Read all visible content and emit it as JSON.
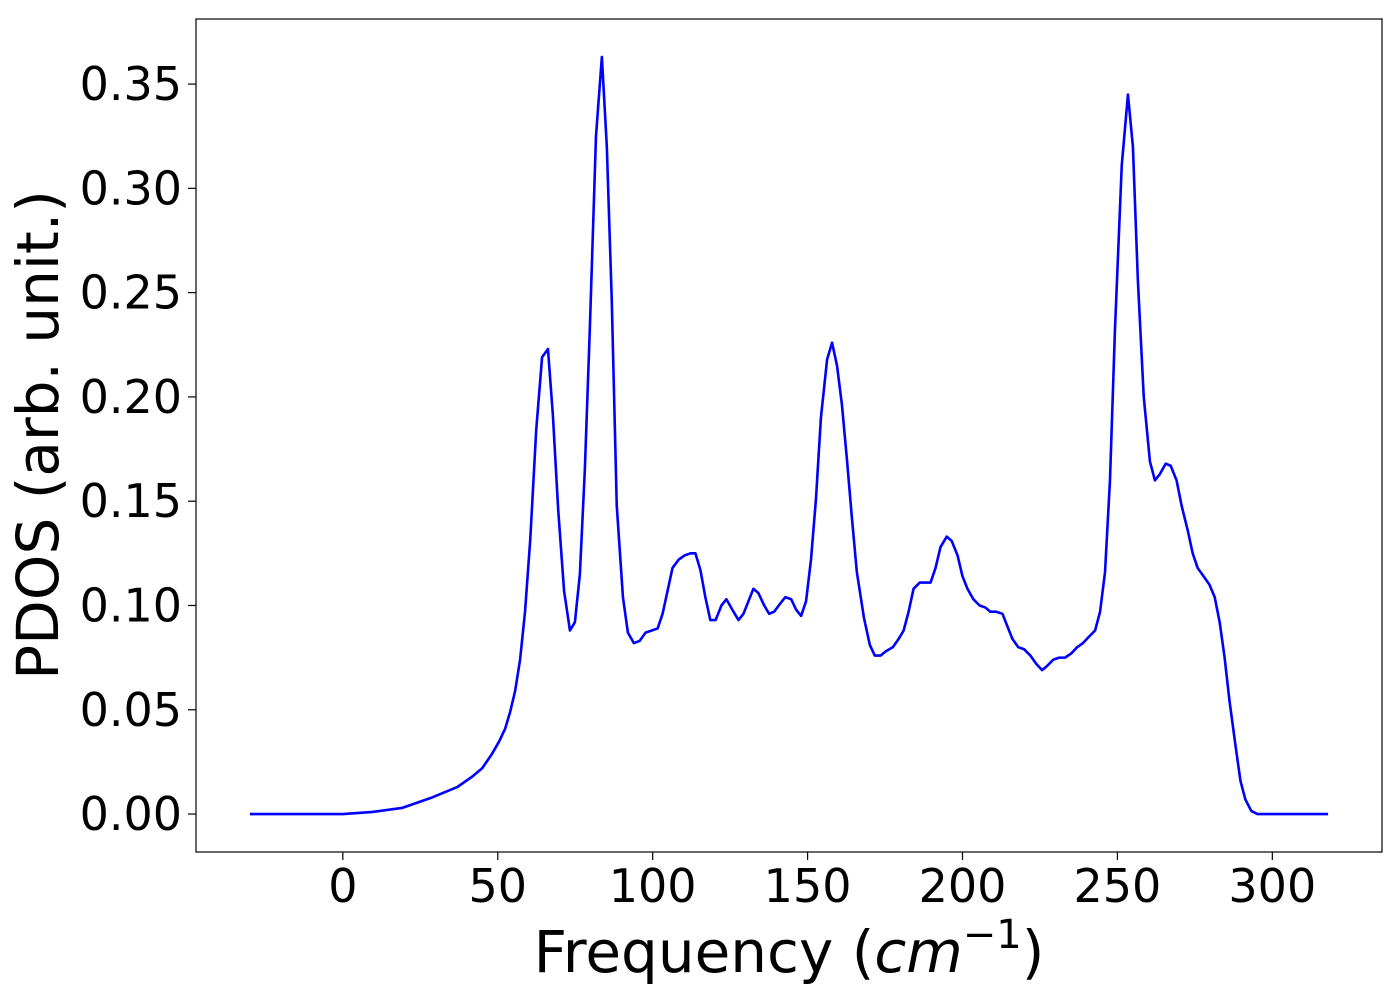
{
  "chart_data": {
    "type": "line",
    "x_label": [
      "Frequency (",
      "cm",
      "−1",
      ")"
    ],
    "y_label": "PDOS (arb. unit.)",
    "xlim": [
      -47.4,
      335.4
    ],
    "ylim": [
      -0.0182,
      0.3812
    ],
    "xticks": [
      0,
      50,
      100,
      150,
      200,
      250,
      300
    ],
    "yticks": [
      {
        "value": 0,
        "label": "0.00"
      },
      {
        "value": 0.05,
        "label": "0.05"
      },
      {
        "value": 0.1,
        "label": "0.10"
      },
      {
        "value": 0.15,
        "label": "0.15"
      },
      {
        "value": 0.2,
        "label": "0.20"
      },
      {
        "value": 0.25,
        "label": "0.25"
      },
      {
        "value": 0.3,
        "label": "0.30"
      },
      {
        "value": 0.35,
        "label": "0.35"
      }
    ],
    "series": [
      {
        "color": "#0000ff",
        "x": [
          -30,
          0,
          9.6,
          19.3,
          28.9,
          37,
          41.8,
          45,
          48.2,
          50.5,
          52.4,
          54,
          55.6,
          57.2,
          58.8,
          60.5,
          62.4,
          64.3,
          66.2,
          67.8,
          69.5,
          71.4,
          73.3,
          74.9,
          76.5,
          78.1,
          79.7,
          81.7,
          83.6,
          85.2,
          86.8,
          88.4,
          90.4,
          92,
          93.9,
          95.8,
          97.7,
          99.7,
          101.6,
          103.2,
          104.8,
          106.4,
          108.4,
          110.3,
          112.2,
          113.8,
          115.4,
          117,
          118.6,
          120.3,
          122.2,
          123.8,
          125.7,
          127.7,
          129.3,
          130.9,
          132.5,
          134.1,
          136,
          137.6,
          139.2,
          141.2,
          142.8,
          144.7,
          146.3,
          147.9,
          149.5,
          151.1,
          152.7,
          154.3,
          156.3,
          157.9,
          159.5,
          161.1,
          162.7,
          164.3,
          165.9,
          168.2,
          170.1,
          171.7,
          173.6,
          175.2,
          177.5,
          179.4,
          181,
          182.6,
          184.2,
          186.2,
          187.8,
          189.7,
          191.3,
          192.9,
          194.9,
          196.5,
          198.4,
          200,
          201.6,
          203.5,
          205.5,
          207.4,
          209,
          210.9,
          212.9,
          214.5,
          216.1,
          218,
          219.9,
          221.9,
          223.8,
          225.7,
          227.3,
          229.3,
          231.2,
          233.1,
          235.1,
          237,
          238.9,
          240.8,
          242.8,
          244.4,
          246,
          247.6,
          249.2,
          251.4,
          253.4,
          255,
          256.6,
          258.5,
          260.5,
          262.1,
          263.7,
          265.6,
          267.2,
          269.1,
          270.7,
          272.7,
          274.3,
          275.9,
          277.8,
          279.7,
          281.4,
          283,
          284.6,
          286.2,
          288.1,
          289.7,
          291.3,
          293.2,
          295.2,
          318
        ],
        "values": [
          0,
          0,
          0.001,
          0.003,
          0.008,
          0.013,
          0.018,
          0.022,
          0.029,
          0.035,
          0.041,
          0.049,
          0.059,
          0.074,
          0.097,
          0.132,
          0.184,
          0.219,
          0.223,
          0.191,
          0.146,
          0.107,
          0.088,
          0.092,
          0.115,
          0.165,
          0.232,
          0.325,
          0.363,
          0.32,
          0.246,
          0.148,
          0.104,
          0.087,
          0.082,
          0.083,
          0.087,
          0.088,
          0.089,
          0.096,
          0.107,
          0.118,
          0.122,
          0.124,
          0.125,
          0.125,
          0.117,
          0.104,
          0.093,
          0.093,
          0.1,
          0.103,
          0.098,
          0.093,
          0.096,
          0.102,
          0.108,
          0.106,
          0.1,
          0.096,
          0.097,
          0.101,
          0.104,
          0.103,
          0.098,
          0.095,
          0.102,
          0.122,
          0.151,
          0.19,
          0.218,
          0.226,
          0.215,
          0.196,
          0.17,
          0.142,
          0.116,
          0.094,
          0.081,
          0.076,
          0.076,
          0.078,
          0.08,
          0.084,
          0.088,
          0.097,
          0.108,
          0.111,
          0.111,
          0.111,
          0.118,
          0.128,
          0.133,
          0.131,
          0.124,
          0.114,
          0.108,
          0.103,
          0.1,
          0.099,
          0.097,
          0.097,
          0.096,
          0.09,
          0.084,
          0.08,
          0.079,
          0.076,
          0.072,
          0.069,
          0.071,
          0.074,
          0.075,
          0.075,
          0.077,
          0.08,
          0.082,
          0.085,
          0.088,
          0.097,
          0.116,
          0.16,
          0.232,
          0.311,
          0.345,
          0.32,
          0.256,
          0.2,
          0.169,
          0.16,
          0.163,
          0.168,
          0.167,
          0.16,
          0.148,
          0.136,
          0.125,
          0.118,
          0.114,
          0.11,
          0.104,
          0.092,
          0.075,
          0.054,
          0.033,
          0.016,
          0.007,
          0.0015,
          0,
          0
        ]
      }
    ]
  }
}
